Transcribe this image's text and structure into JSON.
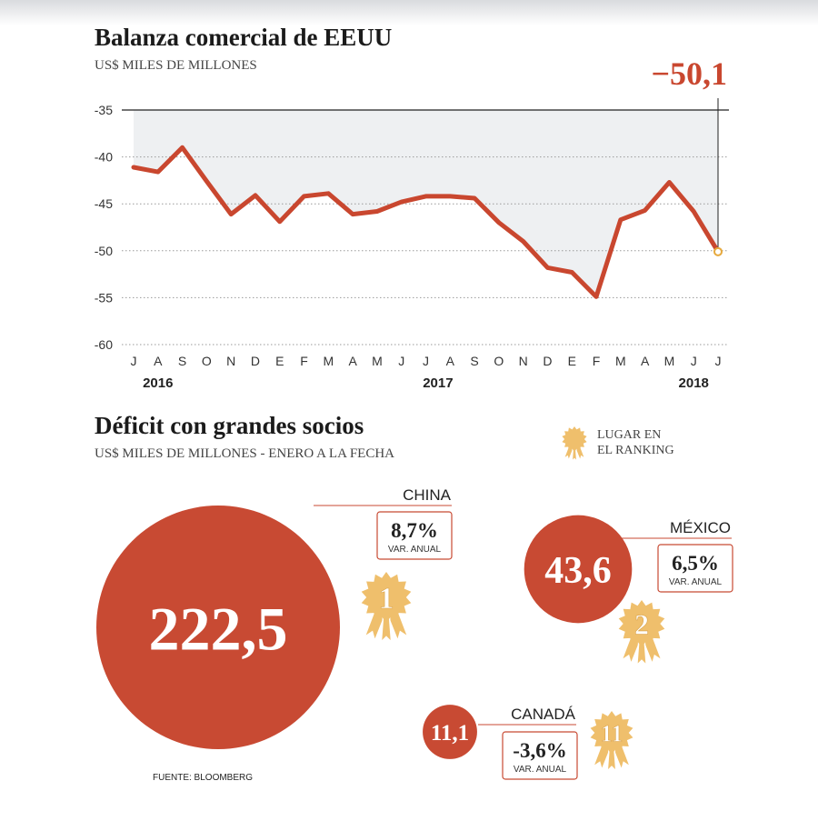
{
  "chart_data": [
    {
      "type": "line",
      "title": "Balanza comercial de EEUU",
      "subtitle": "US$ MILES DE MILLONES",
      "categories": [
        "J",
        "A",
        "S",
        "O",
        "N",
        "D",
        "E",
        "F",
        "M",
        "A",
        "M",
        "J",
        "J",
        "A",
        "S",
        "O",
        "N",
        "D",
        "E",
        "F",
        "M",
        "A",
        "M",
        "J",
        "J"
      ],
      "year_labels": [
        null,
        "2016",
        null,
        null,
        null,
        null,
        null,
        null,
        null,
        null,
        null,
        null,
        "2017",
        null,
        null,
        null,
        null,
        null,
        null,
        null,
        null,
        null,
        null,
        "2018",
        null
      ],
      "values": [
        -41.1,
        -41.6,
        -39.0,
        -42.6,
        -46.1,
        -44.1,
        -46.9,
        -44.2,
        -43.9,
        -46.1,
        -45.8,
        -44.8,
        -44.2,
        -44.2,
        -44.4,
        -47.0,
        -49.0,
        -51.8,
        -52.3,
        -54.9,
        -46.7,
        -45.7,
        -42.7,
        -45.8,
        -50.1
      ],
      "value_labels": [
        null,
        null,
        null,
        null,
        null,
        null,
        null,
        null,
        null,
        null,
        null,
        null,
        null,
        null,
        null,
        null,
        null,
        null,
        null,
        null,
        null,
        null,
        null,
        null,
        "−50,1"
      ],
      "color": "#c9472f",
      "ylim": [
        -60,
        -35
      ],
      "yticks": [
        -35,
        -40,
        -45,
        -50,
        -55,
        -60
      ],
      "grid": true
    },
    {
      "type": "bubble",
      "title": "Déficit con grandes socios",
      "subtitle": "US$ MILES DE MILLONES  - ENERO A LA FECHA",
      "legend_lines": [
        "LUGAR EN",
        "EL RANKING"
      ],
      "categories": [
        "CHINA",
        "MÉXICO",
        "CANADÁ"
      ],
      "values": [
        222.5,
        43.6,
        11.1
      ],
      "value_labels": [
        "222,5",
        "43,6",
        "11,1"
      ],
      "change": [
        8.7,
        6.5,
        -3.6
      ],
      "change_labels": [
        "8,7%",
        "6,5%",
        "-3,6%"
      ],
      "change_caption": "VAR. ANUAL",
      "rank": [
        1,
        2,
        11
      ],
      "color": "#c84a33",
      "badge_color": "#efbf6c",
      "source": "FUENTE: BLOOMBERG"
    }
  ]
}
